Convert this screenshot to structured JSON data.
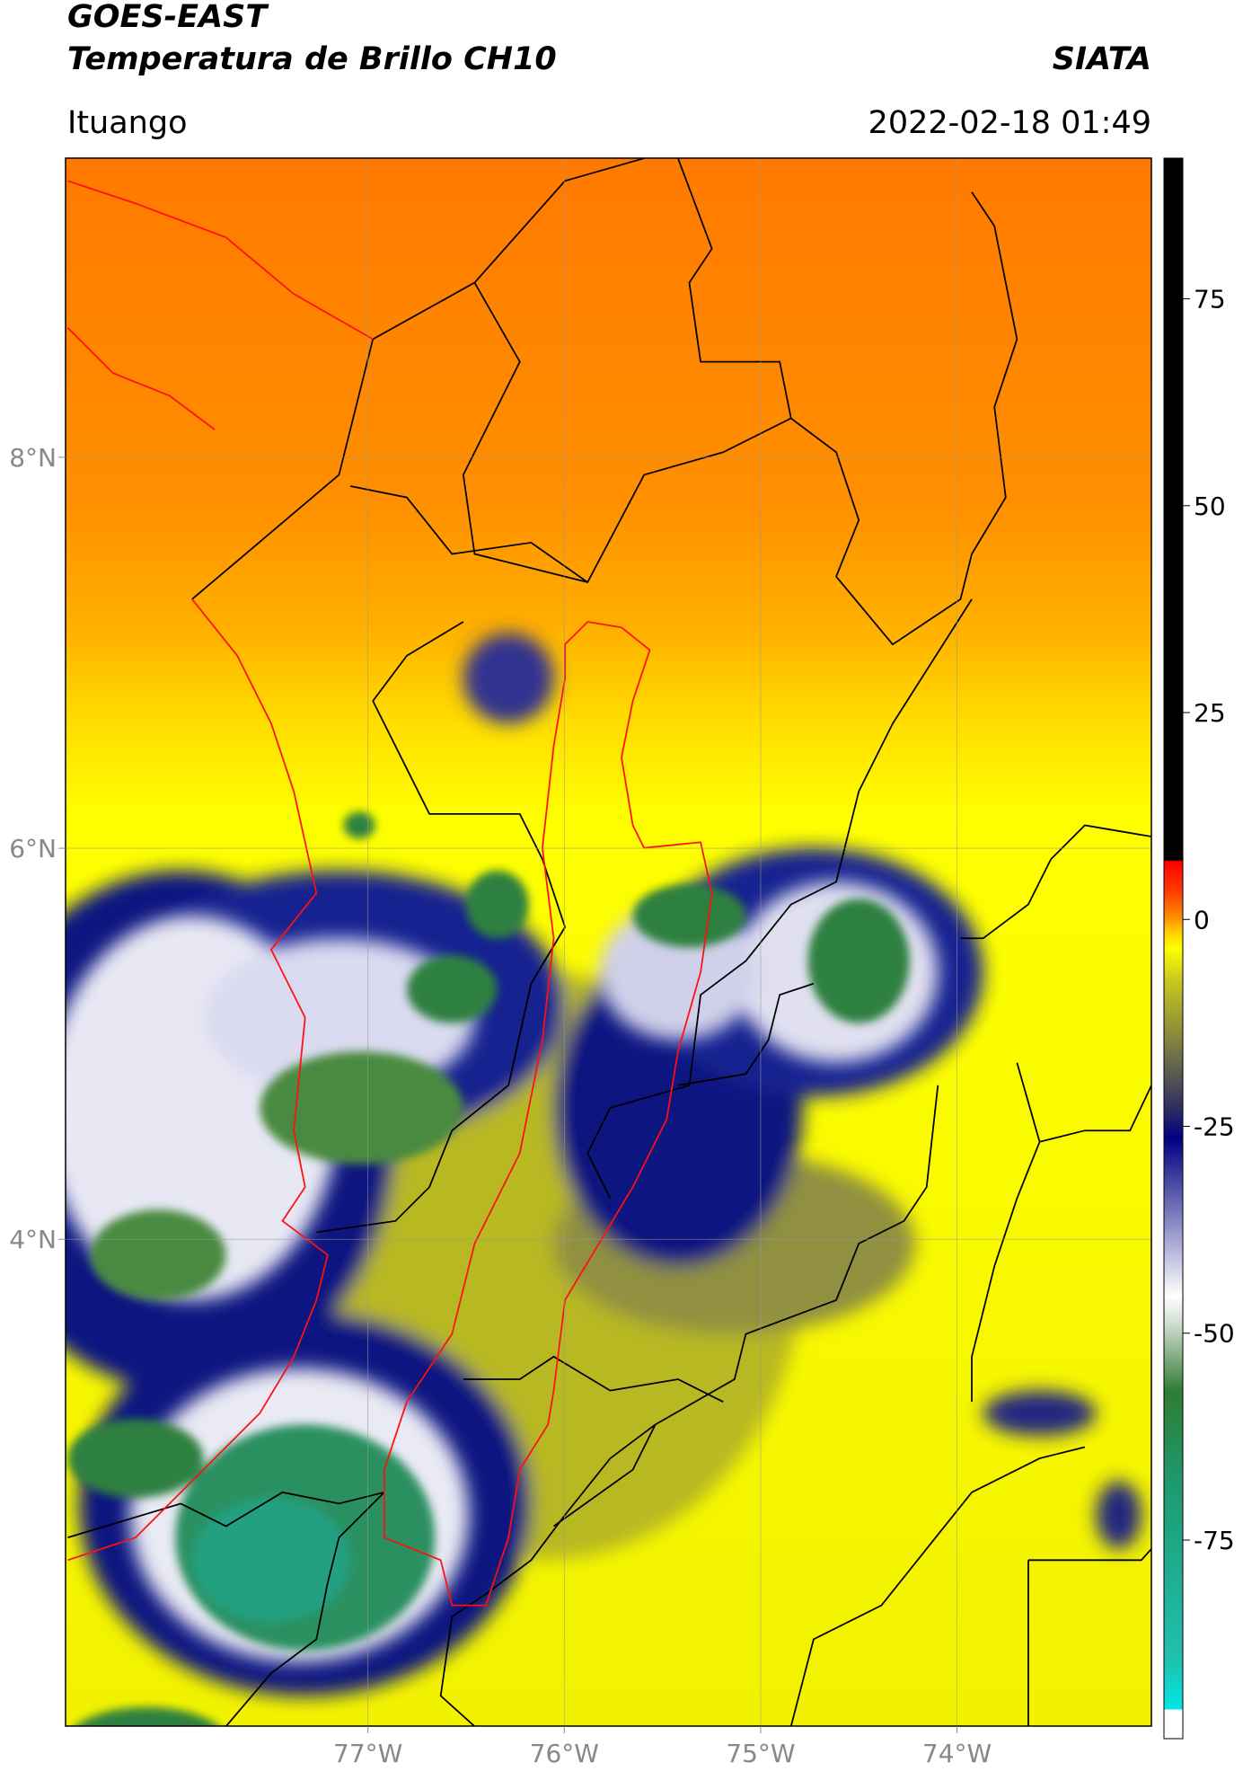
{
  "header": {
    "title": "GOES-EAST",
    "subtitle": "Temperatura de Brillo CH10",
    "brand": "SIATA",
    "location": "Ituango",
    "datetime": "2022-02-18 01:49"
  },
  "chart_data": {
    "type": "map",
    "xlim": [
      -78.54,
      -73.01
    ],
    "ylim": [
      1.51,
      9.53
    ],
    "xticks": [
      {
        "value": -77,
        "label": "77°W"
      },
      {
        "value": -76,
        "label": "76°W"
      },
      {
        "value": -75,
        "label": "75°W"
      },
      {
        "value": -74,
        "label": "74°W"
      }
    ],
    "yticks": [
      {
        "value": 4,
        "label": "4°N"
      },
      {
        "value": 6,
        "label": "6°N"
      },
      {
        "value": 8,
        "label": "8°N"
      }
    ],
    "grid": true,
    "colorbar": {
      "lim": [
        -99,
        92
      ],
      "ticks": [
        -75,
        -50,
        -25,
        0,
        25,
        50,
        75
      ]
    }
  }
}
